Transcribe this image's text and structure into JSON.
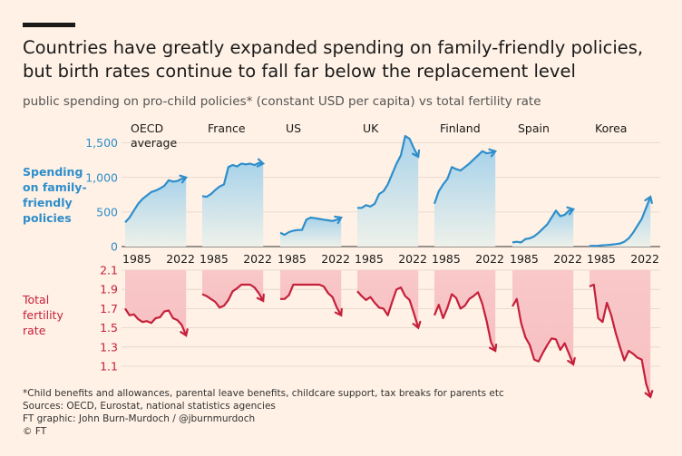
{
  "title_line1": "Countries have greatly expanded spending on family-friendly policies,",
  "title_line2": "but birth rates continue to fall far below the replacement level",
  "subtitle": "public spending on pro-child policies* (constant USD per capita) vs total fertility rate",
  "spending_label": [
    "Spending",
    "on family-",
    "friendly",
    "policies"
  ],
  "fertility_label": [
    "Total",
    "fertility",
    "rate"
  ],
  "footer": {
    "note": "*Child benefits and allowances, parental leave benefits, childcare support, tax breaks for parents etc",
    "sources": "Sources: OECD, Eurostat, national statistics agencies",
    "credit": "FT graphic: John Burn-Murdoch / @jburnmurdoch",
    "copyright": "© FT"
  },
  "colors": {
    "spending": "#2e8ecb",
    "fertility": "#c5203b",
    "background": "#fff1e5",
    "grid": "#e0d4c8"
  },
  "chart_data": {
    "type": "line",
    "panels": [
      "OECD average",
      "France",
      "US",
      "UK",
      "Finland",
      "Spain",
      "Korea"
    ],
    "x_ticks": [
      "1985",
      "2022"
    ],
    "spending_axis": {
      "ylim": [
        0,
        1600
      ],
      "ticks": [
        "0",
        "500",
        "1,000",
        "1,500"
      ]
    },
    "fertility_axis": {
      "ylim": [
        0.85,
        2.1
      ],
      "ticks": [
        "2.1",
        "1.9",
        "1.7",
        "1.5",
        "1.3",
        "1.1"
      ]
    },
    "x_range": [
      1980,
      2025
    ],
    "spending": [
      {
        "name": "OECD average",
        "x": [
          1980,
          1983,
          1986,
          1989,
          1992,
          1995,
          1998,
          2001,
          2004,
          2007,
          2010,
          2013,
          2016,
          2019,
          2022
        ],
        "values": [
          350,
          420,
          520,
          620,
          690,
          740,
          790,
          810,
          840,
          880,
          960,
          940,
          950,
          980,
          1000
        ]
      },
      {
        "name": "France",
        "x": [
          1980,
          1983,
          1986,
          1989,
          1992,
          1995,
          1998,
          2001,
          2004,
          2007,
          2010,
          2013,
          2016,
          2019,
          2022
        ],
        "values": [
          730,
          720,
          760,
          820,
          870,
          900,
          1150,
          1180,
          1160,
          1200,
          1190,
          1200,
          1180,
          1210,
          1200
        ]
      },
      {
        "name": "US",
        "x": [
          1980,
          1983,
          1986,
          1989,
          1992,
          1995,
          1998,
          2001,
          2004,
          2007,
          2010,
          2013,
          2016,
          2019,
          2022
        ],
        "values": [
          200,
          170,
          210,
          230,
          240,
          240,
          390,
          420,
          410,
          400,
          390,
          380,
          370,
          390,
          420
        ]
      },
      {
        "name": "UK",
        "x": [
          1980,
          1983,
          1986,
          1989,
          1992,
          1995,
          1998,
          2001,
          2004,
          2007,
          2010,
          2013,
          2016,
          2019,
          2022
        ],
        "values": [
          560,
          560,
          600,
          580,
          620,
          760,
          800,
          900,
          1050,
          1200,
          1320,
          1600,
          1560,
          1420,
          1300
        ]
      },
      {
        "name": "Finland",
        "x": [
          1980,
          1983,
          1986,
          1989,
          1992,
          1995,
          1998,
          2001,
          2004,
          2007,
          2010,
          2013,
          2016,
          2019,
          2022
        ],
        "values": [
          620,
          800,
          900,
          980,
          1150,
          1120,
          1100,
          1150,
          1200,
          1260,
          1320,
          1380,
          1350,
          1360,
          1380
        ]
      },
      {
        "name": "Spain",
        "x": [
          1980,
          1983,
          1986,
          1989,
          1992,
          1995,
          1998,
          2001,
          2004,
          2007,
          2010,
          2013,
          2016,
          2019,
          2022
        ],
        "values": [
          60,
          70,
          60,
          110,
          120,
          150,
          200,
          260,
          320,
          420,
          520,
          440,
          460,
          520,
          540
        ]
      },
      {
        "name": "Korea",
        "x": [
          1980,
          1983,
          1986,
          1989,
          1992,
          1995,
          1998,
          2001,
          2004,
          2007,
          2010,
          2013,
          2016,
          2019,
          2022
        ],
        "values": [
          10,
          10,
          12,
          18,
          22,
          28,
          35,
          45,
          70,
          120,
          200,
          300,
          400,
          560,
          720
        ]
      }
    ],
    "fertility": [
      {
        "name": "OECD average",
        "x": [
          1980,
          1983,
          1986,
          1989,
          1992,
          1995,
          1998,
          2001,
          2004,
          2007,
          2010,
          2013,
          2016,
          2019,
          2022
        ],
        "values": [
          1.7,
          1.63,
          1.64,
          1.59,
          1.56,
          1.57,
          1.55,
          1.6,
          1.61,
          1.67,
          1.68,
          1.6,
          1.58,
          1.53,
          1.42
        ]
      },
      {
        "name": "France",
        "x": [
          1980,
          1983,
          1986,
          1989,
          1992,
          1995,
          1998,
          2001,
          2004,
          2007,
          2010,
          2013,
          2016,
          2019,
          2022
        ],
        "values": [
          1.85,
          1.83,
          1.8,
          1.77,
          1.71,
          1.73,
          1.79,
          1.88,
          1.91,
          1.98,
          2.0,
          1.96,
          1.92,
          1.86,
          1.78
        ]
      },
      {
        "name": "US",
        "x": [
          1980,
          1983,
          1986,
          1989,
          1992,
          1995,
          1998,
          2001,
          2004,
          2007,
          2010,
          2013,
          2016,
          2019,
          2022
        ],
        "values": [
          1.8,
          1.8,
          1.84,
          2.02,
          2.05,
          2.0,
          2.0,
          2.05,
          2.04,
          2.1,
          1.93,
          1.86,
          1.82,
          1.71,
          1.63
        ]
      },
      {
        "name": "UK",
        "x": [
          1980,
          1983,
          1986,
          1989,
          1992,
          1995,
          1998,
          2001,
          2004,
          2007,
          2010,
          2013,
          2016,
          2019,
          2022
        ],
        "values": [
          1.88,
          1.83,
          1.79,
          1.82,
          1.76,
          1.71,
          1.7,
          1.63,
          1.77,
          1.9,
          1.92,
          1.83,
          1.79,
          1.65,
          1.5
        ]
      },
      {
        "name": "Finland",
        "x": [
          1980,
          1983,
          1986,
          1989,
          1992,
          1995,
          1998,
          2001,
          2004,
          2007,
          2010,
          2013,
          2016,
          2019,
          2022
        ],
        "values": [
          1.63,
          1.74,
          1.6,
          1.71,
          1.85,
          1.81,
          1.7,
          1.73,
          1.8,
          1.83,
          1.87,
          1.75,
          1.57,
          1.35,
          1.26
        ]
      },
      {
        "name": "Spain",
        "x": [
          1980,
          1983,
          1986,
          1989,
          1992,
          1995,
          1998,
          2001,
          2004,
          2007,
          2010,
          2013,
          2016,
          2019,
          2022
        ],
        "values": [
          2.2,
          1.8,
          1.55,
          1.4,
          1.32,
          1.17,
          1.15,
          1.24,
          1.32,
          1.39,
          1.38,
          1.27,
          1.34,
          1.23,
          1.12
        ]
      },
      {
        "name": "Korea",
        "x": [
          1980,
          1983,
          1986,
          1989,
          1992,
          1995,
          1998,
          2001,
          2004,
          2007,
          2010,
          2013,
          2016,
          2019,
          2022
        ],
        "values": [
          2.8,
          2.06,
          1.6,
          1.56,
          1.76,
          1.63,
          1.45,
          1.3,
          1.16,
          1.26,
          1.23,
          1.19,
          1.17,
          0.92,
          0.78
        ]
      }
    ]
  }
}
